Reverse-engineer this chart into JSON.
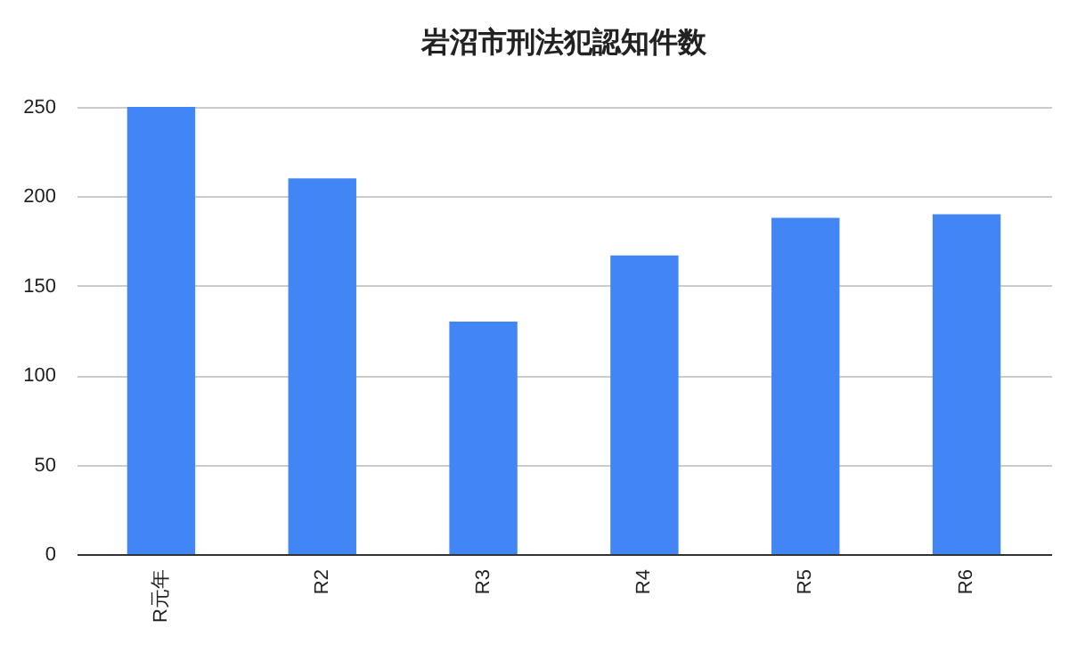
{
  "chart_data": {
    "type": "bar",
    "title": "岩沼市刑法犯認知件数",
    "categories": [
      "R元年",
      "R2",
      "R3",
      "R4",
      "R5",
      "R6"
    ],
    "values": [
      250,
      210,
      130,
      167,
      188,
      190
    ],
    "color": "#4285f4",
    "ylim": [
      0,
      250
    ],
    "yticks": [
      0,
      50,
      100,
      150,
      200,
      250
    ],
    "grid": "y"
  }
}
